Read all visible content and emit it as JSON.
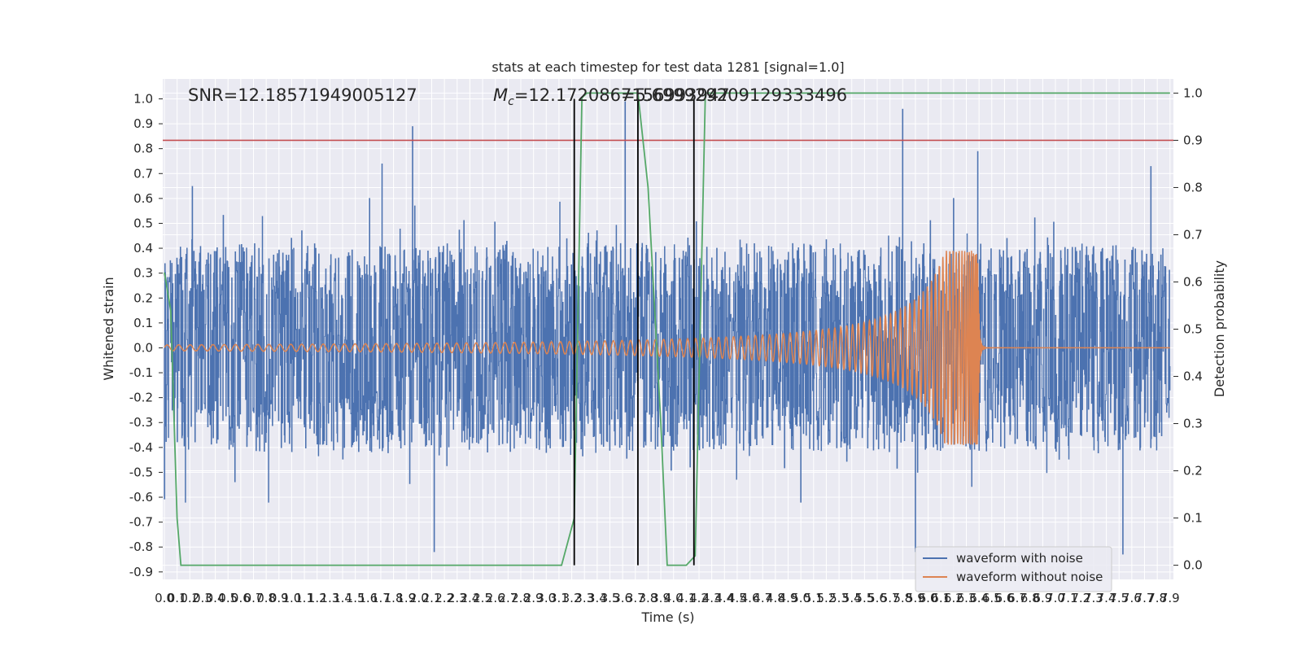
{
  "chart_data": {
    "type": "line",
    "title": "stats at each timestep for test data 1281 [signal=1.0]",
    "xlabel": "Time (s)",
    "ylabel_left": "Whitened strain",
    "ylabel_right": "Detection probability",
    "annotations": {
      "snr": "SNR=12.18571949005127",
      "mc_symbol": "M",
      "mc_subscript": "c",
      "mc_value": "=12.1720867156993947",
      "mc_overlap": "=5.699929209129333496"
    },
    "xlim": [
      0.0,
      7.9
    ],
    "ylim_left": [
      -0.93,
      1.08
    ],
    "ylim_right": [
      -0.03,
      1.03
    ],
    "x_ticks": [
      "0.0",
      "0.1",
      "0.2",
      "0.3",
      "0.4",
      "0.5",
      "0.6",
      "0.7",
      "0.8",
      "0.9",
      "1.0",
      "1.1",
      "1.2",
      "1.3",
      "1.4",
      "1.5",
      "1.6",
      "1.7",
      "1.8",
      "1.9",
      "2.0",
      "2.1",
      "2.2",
      "2.3",
      "2.4",
      "2.5",
      "2.6",
      "2.7",
      "2.8",
      "2.9",
      "3.0",
      "3.1",
      "3.2",
      "3.3",
      "3.4",
      "3.5",
      "3.6",
      "3.7",
      "3.8",
      "3.9",
      "4.0",
      "4.1",
      "4.2",
      "4.3",
      "4.4",
      "4.5",
      "4.6",
      "4.7",
      "4.8",
      "4.9",
      "5.0",
      "5.1",
      "5.2",
      "5.3",
      "5.4",
      "5.5",
      "5.6",
      "5.7",
      "5.8",
      "5.9",
      "6.0",
      "6.1",
      "6.2",
      "6.3",
      "6.4",
      "6.5",
      "6.6",
      "6.7",
      "6.8",
      "6.9",
      "7.0",
      "7.1",
      "7.2",
      "7.3",
      "7.4",
      "7.5",
      "7.6",
      "7.7",
      "7.8",
      "7.9"
    ],
    "y_ticks_left": [
      "1.0",
      "0.9",
      "0.8",
      "0.7",
      "0.6",
      "0.5",
      "0.4",
      "0.3",
      "0.2",
      "0.1",
      "0.0",
      "-0.1",
      "-0.2",
      "-0.3",
      "-0.4",
      "-0.5",
      "-0.6",
      "-0.7",
      "-0.8",
      "-0.9"
    ],
    "y_ticks_right": [
      "1.0",
      "0.9",
      "0.8",
      "0.7",
      "0.6",
      "0.5",
      "0.4",
      "0.3",
      "0.2",
      "0.1",
      "0.0"
    ],
    "grid": true,
    "legend_position": "lower-right",
    "legend": [
      {
        "label": "waveform with noise",
        "color": "#4c72b0"
      },
      {
        "label": "waveform without noise",
        "color": "#dd8452"
      }
    ],
    "colors": {
      "noise": "#4c72b0",
      "signal": "#dd8452",
      "probability": "#55a868",
      "threshold": "#c44e52",
      "markers": "#000000",
      "background": "#eaeaf2"
    },
    "threshold": {
      "axis": "right",
      "value": 0.9
    },
    "vertical_markers": [
      3.22,
      3.72,
      4.16
    ],
    "noise": {
      "envelope_upper": 0.42,
      "envelope_lower": -0.42,
      "peak_spikes": [
        [
          0.22,
          0.65
        ],
        [
          1.71,
          0.74
        ],
        [
          1.95,
          0.89
        ],
        [
          2.12,
          -0.82
        ],
        [
          3.62,
          0.99
        ],
        [
          5.8,
          0.96
        ],
        [
          5.9,
          -0.82
        ],
        [
          6.39,
          0.79
        ],
        [
          7.53,
          -0.83
        ],
        [
          7.75,
          0.73
        ]
      ]
    },
    "signal": {
      "type": "chirp",
      "amplitude_start": 0.01,
      "merger_time": 6.39,
      "peak_amplitude": 0.39
    },
    "probability": {
      "x": [
        0.0,
        0.05,
        0.1,
        0.13,
        0.17,
        0.25,
        0.8,
        2.0,
        3.0,
        3.12,
        3.22,
        3.28,
        3.32,
        3.4,
        3.7,
        3.72,
        3.8,
        3.9,
        3.95,
        4.0,
        4.1,
        4.17,
        4.25,
        7.9
      ],
      "y": [
        0.62,
        0.54,
        0.1,
        0.0,
        0.0,
        0.0,
        0.0,
        0.0,
        0.0,
        0.0,
        0.1,
        0.99,
        1.0,
        1.0,
        1.0,
        1.0,
        0.8,
        0.3,
        0.0,
        0.0,
        0.0,
        0.02,
        1.0,
        1.0
      ]
    }
  }
}
